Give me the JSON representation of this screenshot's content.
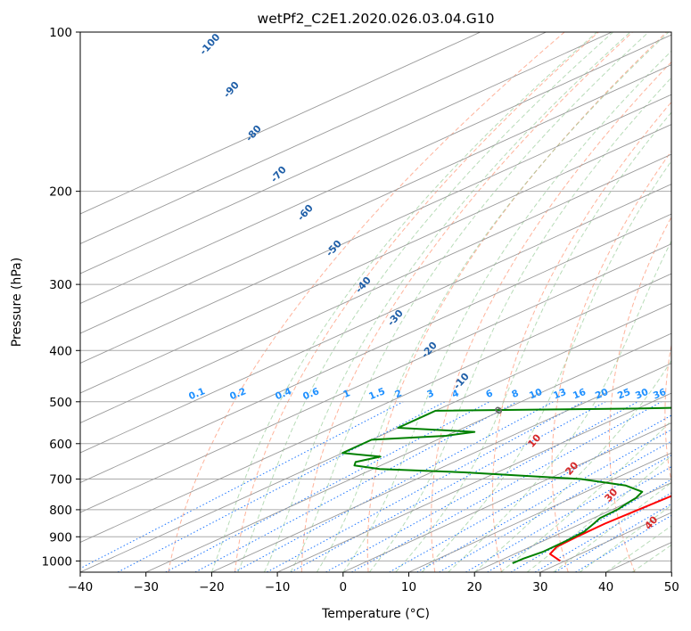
{
  "chart_data": {
    "type": "line",
    "title": "wetPf2_C2E1.2020.026.03.04.G10",
    "xlabel": "Temperature (°C)",
    "ylabel": "Pressure (hPa)",
    "xlim": [
      -40,
      50
    ],
    "ylim": [
      1050,
      100
    ],
    "y_scale": "log",
    "grid": true,
    "x_ticks": [
      "−40",
      "−30",
      "−20",
      "−10",
      "0",
      "10",
      "20",
      "30",
      "40",
      "50"
    ],
    "y_ticks": [
      "100",
      "200",
      "300",
      "400",
      "500",
      "600",
      "700",
      "800",
      "900",
      "1000"
    ],
    "skew_isotherm_labels": [
      "-100",
      "-90",
      "-80",
      "-70",
      "-60",
      "-50",
      "-40",
      "-30",
      "-20",
      "-10",
      "0",
      "10",
      "20",
      "30",
      "40"
    ],
    "mixing_ratio_labels": [
      "0.1",
      "0.2",
      "0.4",
      "0.6",
      "1",
      "1.5",
      "2",
      "3",
      "4",
      "6",
      "8",
      "10",
      "13",
      "16",
      "20",
      "25",
      "30",
      "36"
    ],
    "colors": {
      "temperature": "#ff0000",
      "dewpoint": "#008000",
      "isotherm": "#999999",
      "dry_adiabat": "#ff9a7a",
      "moist_adiabat": "#88c488",
      "mixing_ratio": "#1f77ff",
      "label_cold": "#1f5fa8",
      "label_zero": "#666666",
      "label_warm": "#d62728",
      "mixing_label": "#1e90ff"
    },
    "series": [
      {
        "key": "temperature",
        "points": [
          [
            1000,
            29.3
          ],
          [
            970,
            25.4
          ],
          [
            940,
            24.0
          ],
          [
            900,
            23.7
          ],
          [
            850,
            23.6
          ],
          [
            800,
            24.0
          ],
          [
            750,
            24.5
          ],
          [
            700,
            25.0
          ],
          [
            660,
            25.5
          ],
          [
            640,
            25.3
          ],
          [
            620,
            24.6
          ],
          [
            600,
            24.3
          ],
          [
            575,
            24.2
          ],
          [
            560,
            24.6
          ],
          [
            545,
            27.3
          ],
          [
            530,
            24.7
          ],
          [
            510,
            22.5
          ],
          [
            480,
            21.6
          ],
          [
            450,
            21.2
          ],
          [
            420,
            21.3
          ],
          [
            400,
            21.0
          ],
          [
            380,
            19.7
          ],
          [
            360,
            17.7
          ],
          [
            330,
            16.0
          ],
          [
            300,
            14.9
          ],
          [
            270,
            12.3
          ],
          [
            250,
            9.3
          ],
          [
            230,
            6.5
          ],
          [
            210,
            4.2
          ],
          [
            190,
            2.8
          ],
          [
            170,
            0.9
          ],
          [
            150,
            -1.5
          ],
          [
            135,
            -2.0
          ],
          [
            120,
            -1.9
          ],
          [
            110,
            -0.9
          ],
          [
            100,
            0.5
          ]
        ]
      },
      {
        "key": "dewpoint",
        "points": [
          [
            1010,
            22.8
          ],
          [
            990,
            22.9
          ],
          [
            960,
            23.6
          ],
          [
            920,
            23.5
          ],
          [
            880,
            23.1
          ],
          [
            850,
            21.9
          ],
          [
            830,
            21.0
          ],
          [
            800,
            20.8
          ],
          [
            780,
            20.2
          ],
          [
            760,
            19.7
          ],
          [
            740,
            18.6
          ],
          [
            720,
            14.0
          ],
          [
            700,
            5.0
          ],
          [
            680,
            -15.0
          ],
          [
            670,
            -29.0
          ],
          [
            660,
            -34.0
          ],
          [
            650,
            -35.0
          ],
          [
            635,
            -33.0
          ],
          [
            625,
            -40.0
          ],
          [
            590,
            -40.0
          ],
          [
            580,
            -30.0
          ],
          [
            570,
            -27.0
          ],
          [
            560,
            -40.0
          ],
          [
            530,
            -40.0
          ],
          [
            520,
            -40.0
          ],
          [
            515,
            -10.0
          ],
          [
            510,
            5.0
          ],
          [
            500,
            12.0
          ],
          [
            480,
            16.5
          ],
          [
            460,
            17.0
          ],
          [
            440,
            15.5
          ],
          [
            420,
            11.0
          ],
          [
            410,
            6.0
          ],
          [
            400,
            0.5
          ],
          [
            390,
            0.1
          ],
          [
            380,
            5.0
          ],
          [
            370,
            9.0
          ],
          [
            360,
            14.0
          ],
          [
            350,
            16.8
          ],
          [
            340,
            16.5
          ],
          [
            320,
            14.5
          ],
          [
            300,
            12.5
          ],
          [
            280,
            9.0
          ],
          [
            260,
            5.6
          ],
          [
            240,
            3.8
          ],
          [
            220,
            1.5
          ],
          [
            200,
            -1.5
          ],
          [
            190,
            -4.5
          ],
          [
            180,
            -7.0
          ],
          [
            170,
            -8.0
          ],
          [
            160,
            -7.9
          ],
          [
            145,
            -7.0
          ],
          [
            130,
            -5.8
          ],
          [
            115,
            -4.5
          ],
          [
            100,
            -1.5
          ]
        ]
      }
    ]
  }
}
